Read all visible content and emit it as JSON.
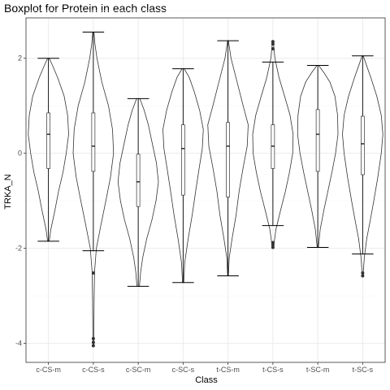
{
  "colors": {
    "panel_border": "#333333",
    "grid_major": "#ebebeb",
    "grid_minor": "#f5f5f5",
    "violin_stroke": "#333333",
    "box_fill": "#ffffff",
    "whisker": "#000000",
    "outlier": "#333333"
  },
  "chart_data": {
    "type": "violin-box",
    "title": "Boxplot for Protein in each class",
    "xlabel": "Class",
    "ylabel": "TRKA_N",
    "ylim": [
      -4.4,
      2.85
    ],
    "yticks": [
      -4,
      -2,
      0,
      2
    ],
    "grid": true,
    "categories": [
      "c-CS-m",
      "c-CS-s",
      "c-SC-m",
      "c-SC-s",
      "t-CS-m",
      "t-CS-s",
      "t-SC-m",
      "t-SC-s"
    ],
    "series": [
      {
        "category": "c-CS-m",
        "min": -1.85,
        "q1": -0.32,
        "median": 0.4,
        "q3": 0.85,
        "max": 2.0,
        "outliers": [],
        "density": [
          [
            -1.85,
            0.04
          ],
          [
            -1.6,
            0.12
          ],
          [
            -1.2,
            0.32
          ],
          [
            -0.8,
            0.5
          ],
          [
            -0.4,
            0.72
          ],
          [
            0,
            0.88
          ],
          [
            0.4,
            1.0
          ],
          [
            0.8,
            0.95
          ],
          [
            1.2,
            0.78
          ],
          [
            1.6,
            0.45
          ],
          [
            1.85,
            0.2
          ],
          [
            2.0,
            0.04
          ]
        ]
      },
      {
        "category": "c-CS-s",
        "min": -2.05,
        "q1": -0.38,
        "median": 0.15,
        "q3": 0.85,
        "max": 2.55,
        "outliers": [
          -2.52,
          -3.9,
          -3.98,
          -4.05
        ],
        "density": [
          [
            -4.05,
            0.02
          ],
          [
            -3.5,
            0.03
          ],
          [
            -3.0,
            0.04
          ],
          [
            -2.5,
            0.06
          ],
          [
            -2.0,
            0.15
          ],
          [
            -1.5,
            0.38
          ],
          [
            -1.0,
            0.62
          ],
          [
            -0.5,
            0.85
          ],
          [
            0,
            1.0
          ],
          [
            0.5,
            0.95
          ],
          [
            1.0,
            0.75
          ],
          [
            1.5,
            0.42
          ],
          [
            2.0,
            0.18
          ],
          [
            2.3,
            0.08
          ],
          [
            2.55,
            0.03
          ]
        ]
      },
      {
        "category": "c-SC-m",
        "min": -2.8,
        "q1": -1.12,
        "median": -0.6,
        "q3": -0.02,
        "max": 1.15,
        "outliers": [],
        "density": [
          [
            -2.8,
            0.06
          ],
          [
            -2.5,
            0.12
          ],
          [
            -2.2,
            0.22
          ],
          [
            -1.8,
            0.42
          ],
          [
            -1.4,
            0.68
          ],
          [
            -1.0,
            0.88
          ],
          [
            -0.6,
            1.0
          ],
          [
            -0.2,
            0.9
          ],
          [
            0.2,
            0.7
          ],
          [
            0.6,
            0.5
          ],
          [
            0.9,
            0.3
          ],
          [
            1.15,
            0.08
          ]
        ]
      },
      {
        "category": "c-SC-s",
        "min": -2.72,
        "q1": -0.88,
        "median": 0.1,
        "q3": 0.6,
        "max": 1.78,
        "outliers": [],
        "density": [
          [
            -2.72,
            0.03
          ],
          [
            -2.3,
            0.08
          ],
          [
            -1.8,
            0.25
          ],
          [
            -1.3,
            0.45
          ],
          [
            -0.8,
            0.62
          ],
          [
            -0.3,
            0.8
          ],
          [
            0.1,
            0.95
          ],
          [
            0.5,
            1.0
          ],
          [
            0.9,
            0.82
          ],
          [
            1.3,
            0.55
          ],
          [
            1.6,
            0.3
          ],
          [
            1.78,
            0.05
          ]
        ]
      },
      {
        "category": "t-CS-m",
        "min": -2.58,
        "q1": -0.92,
        "median": 0.15,
        "q3": 0.65,
        "max": 2.37,
        "outliers": [],
        "density": [
          [
            -2.58,
            0.02
          ],
          [
            -2.2,
            0.06
          ],
          [
            -1.8,
            0.2
          ],
          [
            -1.3,
            0.4
          ],
          [
            -0.8,
            0.55
          ],
          [
            -0.3,
            0.75
          ],
          [
            0.15,
            0.95
          ],
          [
            0.6,
            1.0
          ],
          [
            1.0,
            0.75
          ],
          [
            1.5,
            0.45
          ],
          [
            2.0,
            0.15
          ],
          [
            2.37,
            0.02
          ]
        ]
      },
      {
        "category": "t-CS-s",
        "min": -1.52,
        "q1": -0.32,
        "median": 0.15,
        "q3": 0.6,
        "max": 1.92,
        "outliers": [
          2.35,
          2.3,
          2.2,
          -1.88,
          -1.93,
          -1.98
        ],
        "density": [
          [
            -1.98,
            0.03
          ],
          [
            -1.6,
            0.15
          ],
          [
            -1.2,
            0.38
          ],
          [
            -0.8,
            0.62
          ],
          [
            -0.4,
            0.82
          ],
          [
            0,
            0.98
          ],
          [
            0.4,
            1.0
          ],
          [
            0.8,
            0.85
          ],
          [
            1.2,
            0.58
          ],
          [
            1.6,
            0.3
          ],
          [
            2.0,
            0.1
          ],
          [
            2.35,
            0.02
          ]
        ]
      },
      {
        "category": "t-SC-m",
        "min": -1.98,
        "q1": -0.38,
        "median": 0.4,
        "q3": 0.92,
        "max": 1.85,
        "outliers": [],
        "density": [
          [
            -1.98,
            0.03
          ],
          [
            -1.6,
            0.12
          ],
          [
            -1.2,
            0.3
          ],
          [
            -0.8,
            0.5
          ],
          [
            -0.4,
            0.7
          ],
          [
            0,
            0.88
          ],
          [
            0.4,
            1.0
          ],
          [
            0.8,
            0.98
          ],
          [
            1.2,
            0.85
          ],
          [
            1.5,
            0.6
          ],
          [
            1.7,
            0.3
          ],
          [
            1.85,
            0.04
          ]
        ]
      },
      {
        "category": "t-SC-s",
        "min": -2.12,
        "q1": -0.45,
        "median": 0.2,
        "q3": 0.78,
        "max": 2.05,
        "outliers": [
          -2.52,
          -2.58
        ],
        "density": [
          [
            -2.58,
            0.02
          ],
          [
            -2.2,
            0.08
          ],
          [
            -1.8,
            0.2
          ],
          [
            -1.4,
            0.38
          ],
          [
            -1.0,
            0.55
          ],
          [
            -0.5,
            0.75
          ],
          [
            0,
            0.92
          ],
          [
            0.4,
            1.0
          ],
          [
            0.8,
            0.92
          ],
          [
            1.2,
            0.7
          ],
          [
            1.6,
            0.4
          ],
          [
            1.9,
            0.15
          ],
          [
            2.05,
            0.03
          ]
        ]
      }
    ]
  }
}
